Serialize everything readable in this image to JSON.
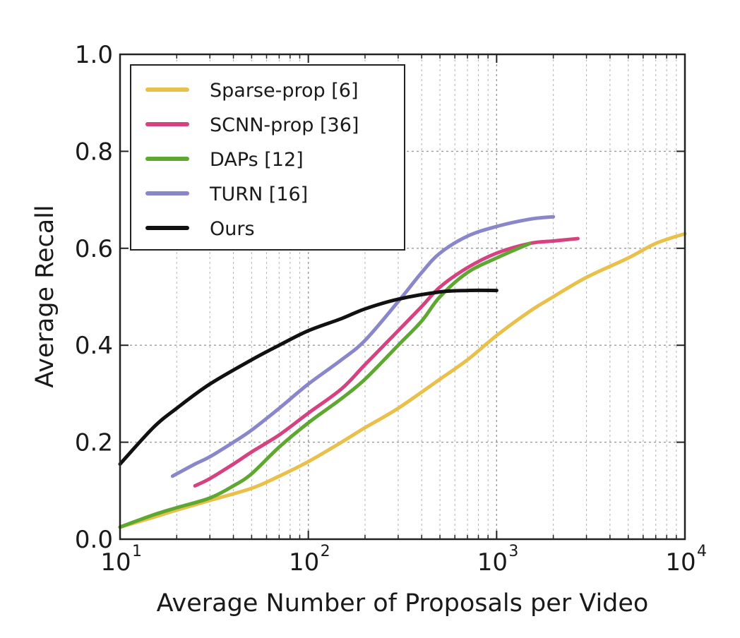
{
  "chart_data": {
    "type": "line",
    "xlabel": "Average Number of Proposals per Video",
    "ylabel": "Average Recall",
    "xscale": "log",
    "xlim": [
      10,
      10000
    ],
    "ylim": [
      0.0,
      1.0
    ],
    "grid": true,
    "legend_position": "upper-left",
    "x_ticks": [
      {
        "value": 10,
        "base": "10",
        "exp": "1"
      },
      {
        "value": 100,
        "base": "10",
        "exp": "2"
      },
      {
        "value": 1000,
        "base": "10",
        "exp": "3"
      },
      {
        "value": 10000,
        "base": "10",
        "exp": "4"
      }
    ],
    "y_ticks": [
      {
        "value": 0.0,
        "label": "0.0"
      },
      {
        "value": 0.2,
        "label": "0.2"
      },
      {
        "value": 0.4,
        "label": "0.4"
      },
      {
        "value": 0.6,
        "label": "0.6"
      },
      {
        "value": 0.8,
        "label": "0.8"
      },
      {
        "value": 1.0,
        "label": "1.0"
      }
    ],
    "series": [
      {
        "name": "Sparse-prop [6]",
        "color": "#e8c04a",
        "points": [
          [
            10,
            0.025
          ],
          [
            15,
            0.045
          ],
          [
            20,
            0.06
          ],
          [
            30,
            0.08
          ],
          [
            50,
            0.105
          ],
          [
            70,
            0.13
          ],
          [
            100,
            0.16
          ],
          [
            150,
            0.2
          ],
          [
            200,
            0.23
          ],
          [
            300,
            0.27
          ],
          [
            500,
            0.33
          ],
          [
            700,
            0.37
          ],
          [
            1000,
            0.42
          ],
          [
            1500,
            0.47
          ],
          [
            2000,
            0.5
          ],
          [
            3000,
            0.54
          ],
          [
            5000,
            0.58
          ],
          [
            7000,
            0.61
          ],
          [
            10000,
            0.63
          ]
        ]
      },
      {
        "name": "SCNN-prop [36]",
        "color": "#d6427f",
        "points": [
          [
            25,
            0.11
          ],
          [
            30,
            0.125
          ],
          [
            40,
            0.155
          ],
          [
            50,
            0.18
          ],
          [
            70,
            0.215
          ],
          [
            100,
            0.26
          ],
          [
            150,
            0.31
          ],
          [
            200,
            0.36
          ],
          [
            300,
            0.43
          ],
          [
            400,
            0.48
          ],
          [
            500,
            0.52
          ],
          [
            700,
            0.56
          ],
          [
            1000,
            0.59
          ],
          [
            1500,
            0.61
          ],
          [
            2000,
            0.615
          ],
          [
            2700,
            0.62
          ]
        ]
      },
      {
        "name": "DAPs [12]",
        "color": "#5ea832",
        "points": [
          [
            10,
            0.025
          ],
          [
            15,
            0.05
          ],
          [
            20,
            0.065
          ],
          [
            30,
            0.085
          ],
          [
            40,
            0.11
          ],
          [
            50,
            0.135
          ],
          [
            70,
            0.19
          ],
          [
            100,
            0.24
          ],
          [
            150,
            0.29
          ],
          [
            200,
            0.33
          ],
          [
            300,
            0.4
          ],
          [
            400,
            0.45
          ],
          [
            500,
            0.5
          ],
          [
            700,
            0.55
          ],
          [
            1000,
            0.58
          ],
          [
            1500,
            0.61
          ]
        ]
      },
      {
        "name": "TURN [16]",
        "color": "#8a86cc",
        "points": [
          [
            19,
            0.13
          ],
          [
            25,
            0.155
          ],
          [
            30,
            0.17
          ],
          [
            40,
            0.2
          ],
          [
            50,
            0.225
          ],
          [
            70,
            0.27
          ],
          [
            100,
            0.32
          ],
          [
            150,
            0.37
          ],
          [
            200,
            0.41
          ],
          [
            300,
            0.49
          ],
          [
            400,
            0.55
          ],
          [
            500,
            0.59
          ],
          [
            700,
            0.625
          ],
          [
            1000,
            0.645
          ],
          [
            1500,
            0.66
          ],
          [
            2000,
            0.665
          ]
        ]
      },
      {
        "name": "Ours",
        "color": "#111111",
        "points": [
          [
            10,
            0.155
          ],
          [
            15,
            0.23
          ],
          [
            20,
            0.27
          ],
          [
            30,
            0.32
          ],
          [
            50,
            0.37
          ],
          [
            70,
            0.4
          ],
          [
            100,
            0.43
          ],
          [
            150,
            0.455
          ],
          [
            200,
            0.475
          ],
          [
            300,
            0.495
          ],
          [
            500,
            0.51
          ],
          [
            700,
            0.513
          ],
          [
            1000,
            0.513
          ]
        ]
      }
    ]
  }
}
